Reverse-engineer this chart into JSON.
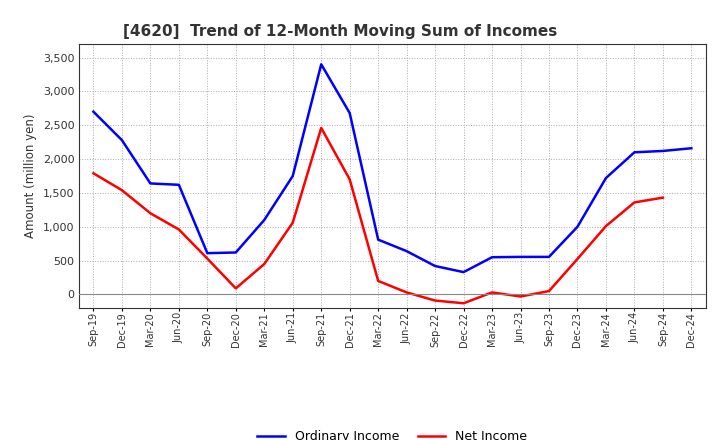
{
  "title": "[4620]  Trend of 12-Month Moving Sum of Incomes",
  "ylabel": "Amount (million yen)",
  "x_labels": [
    "Sep-19",
    "Dec-19",
    "Mar-20",
    "Jun-20",
    "Sep-20",
    "Dec-20",
    "Mar-21",
    "Jun-21",
    "Sep-21",
    "Dec-21",
    "Mar-22",
    "Jun-22",
    "Sep-22",
    "Dec-22",
    "Mar-23",
    "Jun-23",
    "Sep-23",
    "Dec-23",
    "Mar-24",
    "Jun-24",
    "Sep-24",
    "Dec-24"
  ],
  "ordinary_income": [
    2700,
    2280,
    1640,
    1620,
    610,
    620,
    1100,
    1750,
    3400,
    2680,
    810,
    640,
    420,
    330,
    550,
    555,
    555,
    1000,
    1720,
    2100,
    2120,
    2160
  ],
  "net_income": [
    1790,
    1540,
    1200,
    960,
    530,
    90,
    450,
    1060,
    2460,
    1700,
    200,
    30,
    -90,
    -130,
    30,
    -30,
    50,
    525,
    1010,
    1360,
    1430,
    null
  ],
  "ordinary_color": "#0000FF",
  "net_color": "#FF0000",
  "ylim": [
    -200,
    3700
  ],
  "yticks": [
    0,
    500,
    1000,
    1500,
    2000,
    2500,
    3000,
    3500
  ],
  "background_color": "#FFFFFF",
  "grid_color": "#AAAAAA",
  "legend_labels": [
    "Ordinary Income",
    "Net Income"
  ],
  "title_color": "#333333"
}
